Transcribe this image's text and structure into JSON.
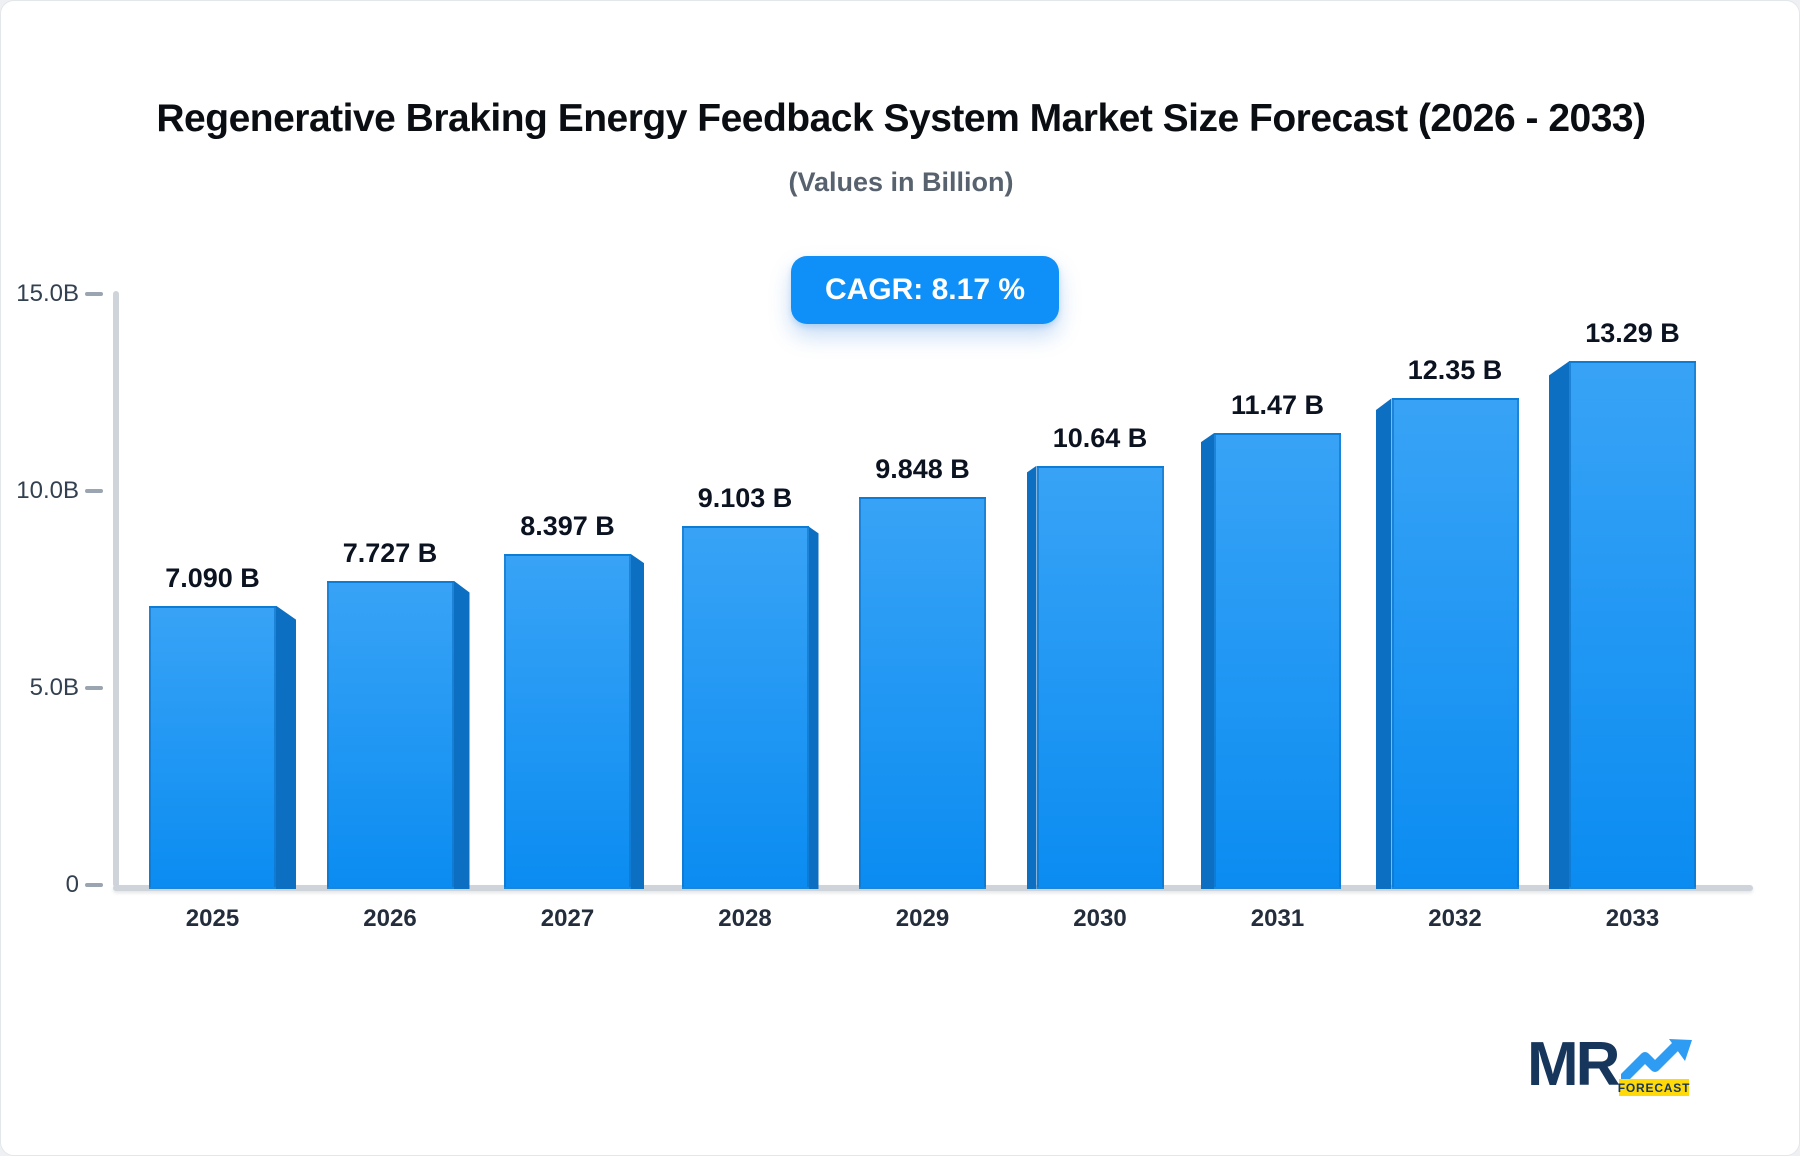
{
  "title": "Regenerative Braking Energy Feedback System Market Size Forecast (2026 - 2033)",
  "subtitle": "(Values in Billion)",
  "badge": {
    "label": "CAGR: 8.17 %",
    "color": "#0e90f8"
  },
  "chart_data": {
    "type": "bar",
    "title": "Regenerative Braking Energy Feedback System Market Size Forecast (2026 - 2033)",
    "subtitle": "(Values in Billion)",
    "xlabel": "",
    "ylabel": "",
    "categories": [
      "2025",
      "2026",
      "2027",
      "2028",
      "2029",
      "2030",
      "2031",
      "2032",
      "2033"
    ],
    "values": [
      7.09,
      7.727,
      8.397,
      9.103,
      9.848,
      10.64,
      11.47,
      12.35,
      13.29
    ],
    "value_labels": [
      "7.090 B",
      "7.727 B",
      "8.397 B",
      "9.103 B",
      "9.848 B",
      "10.64 B",
      "11.47 B",
      "12.35 B",
      "13.29 B"
    ],
    "ylim": [
      0,
      15
    ],
    "yticks": [
      {
        "value": 15,
        "label": "15.0B"
      },
      {
        "value": 10,
        "label": "10.0B"
      },
      {
        "value": 5,
        "label": "5.0B"
      },
      {
        "value": 0,
        "label": "0"
      }
    ],
    "grid": false,
    "legend": "none",
    "cagr_annotation": "CAGR: 8.17 %",
    "bar_color_top": "#38a3f6",
    "bar_color_bottom": "#0b8cf1",
    "bar_side_color": "#0d6fc2",
    "axis_color": "#cfd4da"
  },
  "logo": {
    "mr": "MR",
    "forecast": "FORECAST",
    "navy": "#17365c",
    "blue": "#2e9cf3",
    "yellow": "#ffd908"
  }
}
